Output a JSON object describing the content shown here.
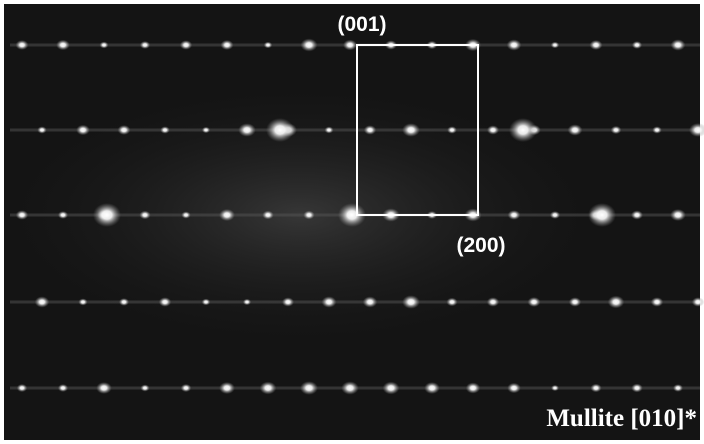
{
  "labels": {
    "top": "(001)",
    "bottom": "(200)",
    "caption": "Mullite [010]*"
  }
}
